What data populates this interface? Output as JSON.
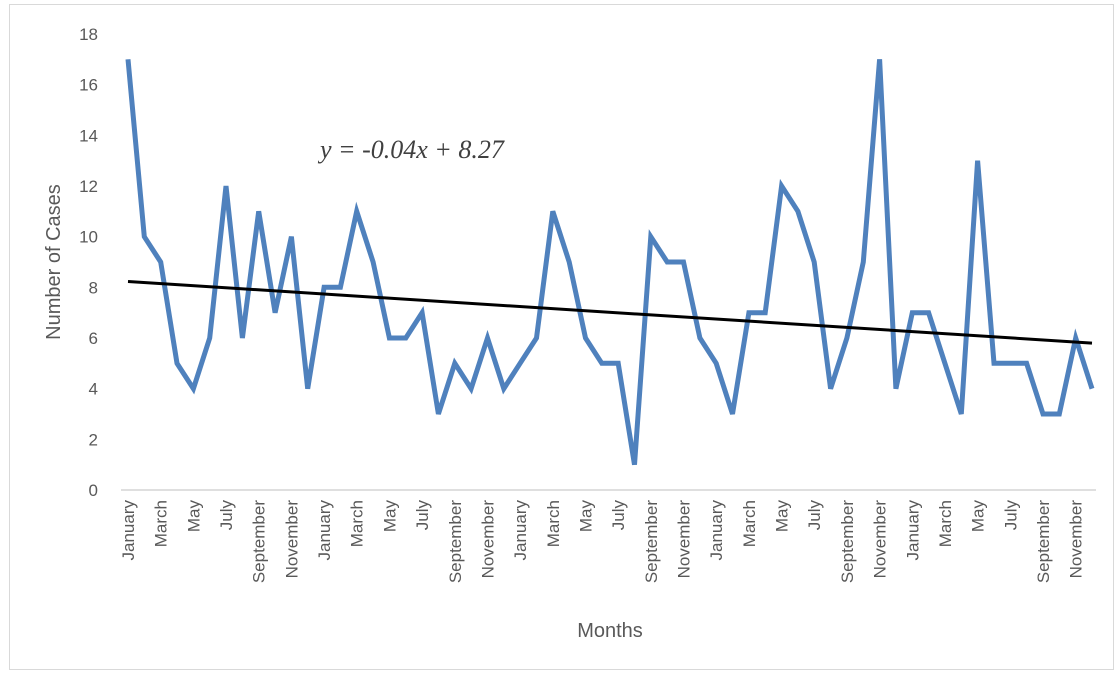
{
  "chart_data": {
    "type": "line",
    "title": "",
    "xlabel": "Months",
    "ylabel": "Number of Cases",
    "ylim": [
      0,
      18
    ],
    "yticks": [
      0,
      2,
      4,
      6,
      8,
      10,
      12,
      14,
      16,
      18
    ],
    "grid": false,
    "x_tick_labels": [
      "January",
      "March",
      "May",
      "July",
      "September",
      "November",
      "January",
      "March",
      "May",
      "July",
      "September",
      "November",
      "January",
      "March",
      "May",
      "July",
      "September",
      "November",
      "January",
      "March",
      "May",
      "July",
      "September",
      "November",
      "January",
      "March",
      "May",
      "July",
      "September",
      "November"
    ],
    "series": [
      {
        "color": "#4f81bd",
        "values": [
          17,
          10,
          9,
          5,
          4,
          6,
          12,
          6,
          11,
          7,
          10,
          4,
          8,
          8,
          11,
          9,
          6,
          6,
          7,
          3,
          5,
          4,
          6,
          4,
          5,
          6,
          11,
          9,
          6,
          5,
          5,
          1,
          10,
          9,
          9,
          6,
          5,
          3,
          7,
          7,
          12,
          11,
          9,
          4,
          6,
          9,
          17,
          4,
          7,
          7,
          5,
          3,
          13,
          5,
          5,
          5,
          3,
          3,
          6,
          4
        ]
      }
    ],
    "trendline": {
      "color": "#000000",
      "slope": -0.04,
      "intercept": 8.27,
      "start": 8.23,
      "end": 5.8,
      "equation": "y = -0.04x + 8.27"
    }
  }
}
